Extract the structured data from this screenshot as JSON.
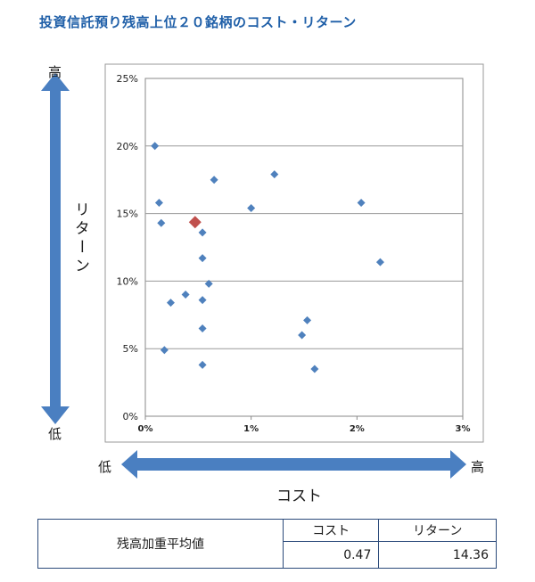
{
  "title": "投資信託預り残高上位２０銘柄のコスト・リターン",
  "axis_words": {
    "y_high": "高",
    "y_low": "低",
    "x_low": "低",
    "x_high": "高",
    "y_label": "リターン",
    "x_label": "コスト"
  },
  "chart_data": {
    "type": "scatter",
    "title": "投資信託預り残高上位２０銘柄のコスト・リターン",
    "xlabel": "コスト",
    "ylabel": "リターン",
    "xlim": [
      0,
      3
    ],
    "ylim": [
      0,
      25
    ],
    "x_ticks": [
      "0%",
      "1%",
      "2%",
      "3%"
    ],
    "y_ticks": [
      "0%",
      "5%",
      "10%",
      "15%",
      "20%",
      "25%"
    ],
    "grid": "horizontal",
    "series": [
      {
        "color": "#4f81bd",
        "points": [
          [
            0.09,
            20.0
          ],
          [
            0.13,
            15.8
          ],
          [
            0.15,
            14.3
          ],
          [
            0.24,
            8.4
          ],
          [
            0.38,
            9.0
          ],
          [
            0.18,
            4.9
          ],
          [
            0.54,
            13.6
          ],
          [
            0.54,
            11.7
          ],
          [
            0.6,
            9.8
          ],
          [
            0.54,
            8.6
          ],
          [
            0.54,
            6.5
          ],
          [
            0.54,
            3.8
          ],
          [
            0.65,
            17.5
          ],
          [
            1.0,
            15.4
          ],
          [
            1.22,
            17.9
          ],
          [
            1.53,
            7.1
          ],
          [
            1.48,
            6.0
          ],
          [
            1.6,
            3.5
          ],
          [
            2.04,
            15.8
          ],
          [
            2.22,
            11.4
          ]
        ]
      },
      {
        "color": "#c0504d",
        "points": [
          [
            0.47,
            14.36
          ]
        ]
      }
    ]
  },
  "average_table": {
    "row_label": "残高加重平均値",
    "headers": [
      "コスト",
      "リターン"
    ],
    "values": [
      "0.47",
      "14.36"
    ]
  }
}
